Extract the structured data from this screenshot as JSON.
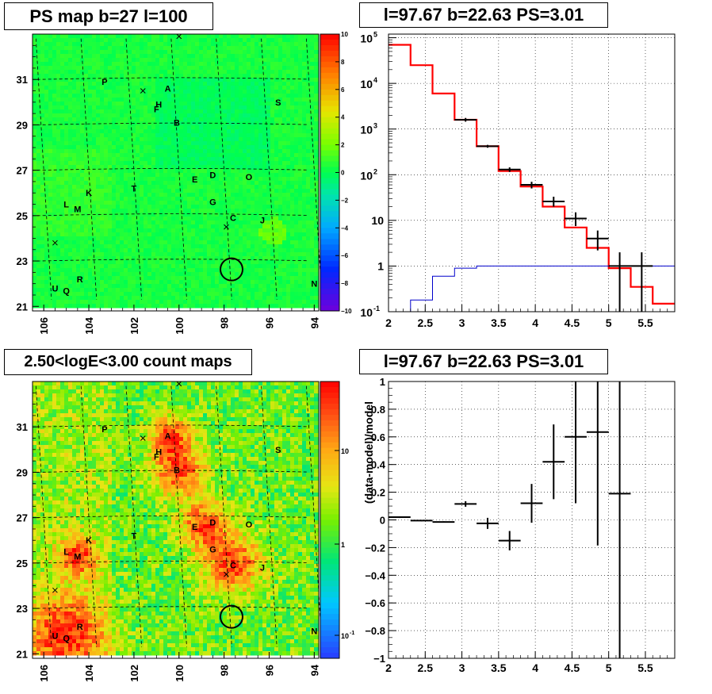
{
  "panels": {
    "map_title": "PS map b=27 l=100",
    "spec_title": "l=97.67 b=22.63 PS=3.01",
    "count_title": "2.50<logE<3.00 count maps",
    "resid_title": "l=97.67 b=22.63 PS=3.01"
  },
  "colors": {
    "model": "#ff0000",
    "data": "#000000",
    "background_model": "#0000cc"
  },
  "chart_data": [
    {
      "type": "heatmap",
      "title": "PS map b=27 l=100",
      "x_ticks": [
        "106",
        "104",
        "102",
        "100",
        "98",
        "96",
        "94"
      ],
      "y_ticks": [
        "31",
        "29",
        "27",
        "25",
        "23",
        "21"
      ],
      "xlim": [
        106.5,
        93.8
      ],
      "ylim": [
        20.8,
        33.0
      ],
      "colorbar": {
        "min": -10,
        "max": 10,
        "ticks": [
          "10",
          "8",
          "6",
          "4",
          "2",
          "0",
          "−2",
          "−4",
          "−6",
          "−8",
          "−10"
        ]
      },
      "sources": [
        {
          "label": "P",
          "l": 103.3,
          "b": 30.9
        },
        {
          "label": "A",
          "l": 100.5,
          "b": 30.6
        },
        {
          "label": "H",
          "l": 100.9,
          "b": 29.9
        },
        {
          "label": "F",
          "l": 101.0,
          "b": 29.7
        },
        {
          "label": "B",
          "l": 100.1,
          "b": 29.1
        },
        {
          "label": "S",
          "l": 95.6,
          "b": 30.0
        },
        {
          "label": "E",
          "l": 99.3,
          "b": 26.6
        },
        {
          "label": "D",
          "l": 98.5,
          "b": 26.8
        },
        {
          "label": "O",
          "l": 96.9,
          "b": 26.7
        },
        {
          "label": "K",
          "l": 104.0,
          "b": 26.0
        },
        {
          "label": "T",
          "l": 102.0,
          "b": 26.2
        },
        {
          "label": "L",
          "l": 105.0,
          "b": 25.5
        },
        {
          "label": "M",
          "l": 104.5,
          "b": 25.3
        },
        {
          "label": "G",
          "l": 98.5,
          "b": 25.6
        },
        {
          "label": "C",
          "l": 97.6,
          "b": 24.9
        },
        {
          "label": "J",
          "l": 96.3,
          "b": 24.8
        },
        {
          "label": "R",
          "l": 104.4,
          "b": 22.2
        },
        {
          "label": "U",
          "l": 105.5,
          "b": 21.8
        },
        {
          "label": "Q",
          "l": 105.0,
          "b": 21.7
        },
        {
          "label": "N",
          "l": 94.0,
          "b": 22.0
        }
      ],
      "crosses": [
        {
          "l": 100.0,
          "b": 32.9
        },
        {
          "l": 101.6,
          "b": 30.5
        },
        {
          "l": 97.9,
          "b": 24.5
        },
        {
          "l": 105.5,
          "b": 23.8
        }
      ],
      "circle": {
        "l": 97.67,
        "b": 22.63
      }
    },
    {
      "type": "line",
      "title": "l=97.67 b=22.63 PS=3.01",
      "x_ticks": [
        "2",
        "2.5",
        "3",
        "3.5",
        "4",
        "4.5",
        "5",
        "5.5"
      ],
      "y_ticks": [
        "10^-1",
        "1",
        "10",
        "10^2",
        "10^3",
        "10^4",
        "10^5"
      ],
      "xlim": [
        2.0,
        5.9
      ],
      "ylim": [
        0.1,
        120000
      ],
      "yscale": "log",
      "series": [
        {
          "edges": [
            2.0,
            2.3,
            2.6,
            2.9,
            3.2,
            3.5,
            3.8,
            4.1,
            4.4,
            4.7,
            5.0,
            5.3,
            5.6,
            5.9
          ],
          "values": [
            70000,
            25000,
            6000,
            1600,
            420,
            120,
            55,
            20,
            7,
            2.5,
            0.9,
            0.35,
            0.15
          ]
        },
        {
          "edges": [
            2.0,
            2.3,
            2.6,
            2.9,
            3.2,
            3.5,
            3.8,
            4.1,
            4.4,
            4.7,
            5.0,
            5.3,
            5.6,
            5.9
          ],
          "values": [
            0.1,
            0.18,
            0.6,
            0.9,
            1.0,
            1.0,
            1.0,
            1.0,
            1.0,
            1.0,
            1.0,
            1.0,
            1.0
          ]
        }
      ],
      "points": [
        {
          "x": 3.05,
          "y": 1600,
          "lo": 1450,
          "hi": 1750
        },
        {
          "x": 3.35,
          "y": 420,
          "lo": 390,
          "hi": 450
        },
        {
          "x": 3.65,
          "y": 130,
          "lo": 115,
          "hi": 145
        },
        {
          "x": 3.95,
          "y": 60,
          "lo": 50,
          "hi": 70
        },
        {
          "x": 4.25,
          "y": 26,
          "lo": 20,
          "hi": 33
        },
        {
          "x": 4.55,
          "y": 11,
          "lo": 7.5,
          "hi": 15
        },
        {
          "x": 4.85,
          "y": 4,
          "lo": 2.2,
          "hi": 6
        },
        {
          "x": 5.15,
          "y": 1,
          "lo": 0.1,
          "hi": 2
        },
        {
          "x": 5.45,
          "y": 1,
          "lo": 0.1,
          "hi": 2
        }
      ]
    },
    {
      "type": "heatmap",
      "title": "2.50<logE<3.00 count maps",
      "x_ticks": [
        "106",
        "104",
        "102",
        "100",
        "98",
        "96",
        "94"
      ],
      "y_ticks": [
        "31",
        "29",
        "27",
        "25",
        "23",
        "21"
      ],
      "colorbar": {
        "scale": "log",
        "ticks": [
          "10",
          "1",
          "10^-1"
        ]
      },
      "hotspots": [
        {
          "l": 100.4,
          "b": 30.6,
          "s": 0.6
        },
        {
          "l": 100.0,
          "b": 29.1,
          "s": 0.8
        },
        {
          "l": 98.9,
          "b": 26.7,
          "s": 0.7
        },
        {
          "l": 97.6,
          "b": 25.0,
          "s": 0.9
        },
        {
          "l": 105.0,
          "b": 21.8,
          "s": 1.2
        },
        {
          "l": 104.5,
          "b": 25.3,
          "s": 0.6
        }
      ]
    },
    {
      "type": "scatter",
      "title": "l=97.67 b=22.63 PS=3.01",
      "ylabel": "(data-model)/model",
      "x_ticks": [
        "2",
        "2.5",
        "3",
        "3.5",
        "4",
        "4.5",
        "5",
        "5.5"
      ],
      "y_ticks": [
        "1",
        "0.8",
        "0.6",
        "0.4",
        "0.2",
        "0",
        "−0.2",
        "−0.4",
        "−0.6",
        "−0.8",
        "−1"
      ],
      "xlim": [
        2.0,
        5.9
      ],
      "ylim": [
        -1,
        1
      ],
      "points": [
        {
          "x": 2.15,
          "y": 0.02,
          "err": 0.006
        },
        {
          "x": 2.45,
          "y": -0.005,
          "err": 0.005
        },
        {
          "x": 2.75,
          "y": -0.015,
          "err": 0.005
        },
        {
          "x": 3.05,
          "y": 0.115,
          "err": 0.02
        },
        {
          "x": 3.35,
          "y": -0.025,
          "err": 0.04
        },
        {
          "x": 3.65,
          "y": -0.15,
          "err": 0.07
        },
        {
          "x": 3.95,
          "y": 0.12,
          "err": 0.14
        },
        {
          "x": 4.25,
          "y": 0.42,
          "err": 0.27
        },
        {
          "x": 4.55,
          "y": 0.6,
          "err": 0.48
        },
        {
          "x": 4.85,
          "y": 0.635,
          "err": 0.82
        },
        {
          "x": 5.15,
          "y": 0.19,
          "err": 1.2
        }
      ]
    }
  ]
}
